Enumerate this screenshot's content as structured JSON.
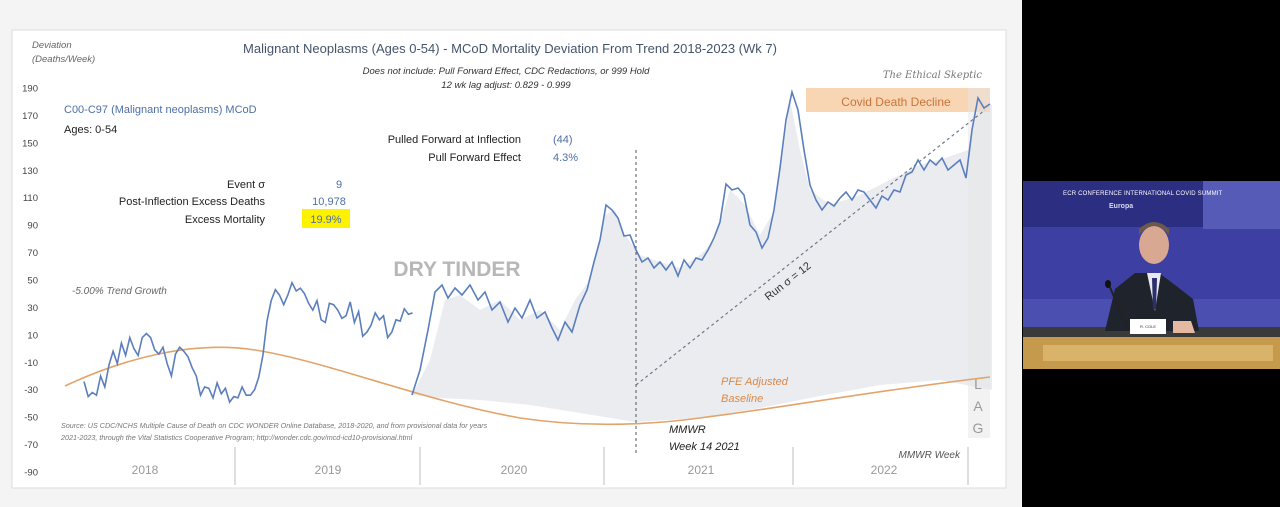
{
  "chart_data": {
    "type": "area",
    "title": "Malignant Neoplasms (Ages 0-54) - MCoD Mortality Deviation From Trend  2018-2023 (Wk 7)",
    "subtitle_line1": "Does not include: Pull Forward Effect, CDC Redactions, or 999 Hold",
    "subtitle_line2": "12 wk lag adjust: 0.829 - 0.999",
    "ylabel_line1": "Deviation",
    "ylabel_line2": "(Deaths/Week)",
    "watermark": "The Ethical Skeptic",
    "ylim": [
      -90,
      190
    ],
    "y_ticks": [
      190,
      170,
      150,
      130,
      110,
      90,
      70,
      50,
      30,
      10,
      -10,
      -30,
      -50,
      -70,
      -90
    ],
    "year_labels": [
      "2018",
      "2019",
      "2020",
      "2021",
      "2022"
    ],
    "footer_right": "MMWR Week",
    "series_name": "C00-C97 (Malignant neoplasms) MCoD",
    "ages_label": "Ages: 0-54",
    "series": [
      {
        "name": "Deviation",
        "color": "#5b7fbd",
        "x": [
          0,
          4,
          8,
          12,
          16,
          20,
          24,
          28,
          32,
          36,
          40,
          44,
          48,
          52,
          56,
          60,
          64,
          68,
          72,
          76,
          80,
          84,
          88,
          92,
          96,
          100,
          104,
          108,
          112,
          116,
          120,
          124,
          128,
          132,
          136,
          140,
          144,
          148,
          152,
          156,
          160,
          164,
          168,
          172,
          176,
          180,
          184,
          188,
          192,
          196,
          200,
          204,
          208,
          212,
          216,
          220,
          224,
          228,
          232,
          236,
          240,
          244,
          248,
          252,
          256,
          260,
          264,
          268,
          272,
          276,
          280,
          284,
          288,
          292,
          296,
          300,
          304,
          308,
          312,
          316
        ],
        "y": [
          -24,
          -35,
          -32,
          -34,
          -20,
          -28,
          -12,
          -2,
          -11,
          4,
          -5,
          8,
          0,
          -5,
          8,
          11,
          8,
          -1,
          -4,
          1,
          -11,
          -20,
          -4,
          1,
          -2,
          -6,
          -14,
          -20,
          -34,
          -28,
          -29,
          -36,
          -25,
          -33,
          -29,
          -39,
          -35,
          -36,
          -28,
          -34,
          -34,
          -30,
          -21,
          -5,
          20,
          35,
          43,
          39,
          32,
          39,
          48,
          42,
          44,
          40,
          33,
          28,
          35,
          21,
          19,
          33,
          32,
          28,
          22,
          24,
          34,
          19,
          27,
          9,
          12,
          17,
          26,
          21,
          24,
          8,
          12,
          21,
          20,
          29,
          25,
          26
        ]
      }
    ],
    "annotations": {
      "dry_tinder": "DRY TINDER",
      "trend_growth": "-5.00% Trend Growth",
      "covid_decline": "Covid Death Decline",
      "run_sigma": "Run σ = 12",
      "pfe_line1": "PFE Adjusted",
      "pfe_line2": "Baseline",
      "mmwr_line1": "MMWR",
      "mmwr_line2": "Week 14 2021",
      "lag_letters": [
        "L",
        "A",
        "G"
      ],
      "source_line1": "Source: US CDC/NCHS Multiple Cause of Death on CDC WONDER Online Database, 2018-2020, and from provisional data for years",
      "source_line2": "2021-2023, through the Vital Statistics Cooperative Program; http://wonder.cdc.gov/mcd-icd10-provisional.html"
    },
    "stats": [
      {
        "label": "Event σ",
        "value": "9",
        "highlight": false
      },
      {
        "label": "Post-Inflection Excess Deaths",
        "value": "10,978",
        "highlight": false
      },
      {
        "label": "Excess Mortality",
        "value": "19.9%",
        "highlight": true
      }
    ],
    "pull_forward": [
      {
        "label": "Pulled Forward at Inflection",
        "value": "(44)"
      },
      {
        "label": "Pull Forward Effect",
        "value": "4.3%"
      }
    ]
  },
  "video": {
    "caption": "ECR CONFERENCE INTERNATIONAL COVID SUMMIT",
    "backdrop_text": "Europa",
    "nameplate": "R. COLE"
  }
}
